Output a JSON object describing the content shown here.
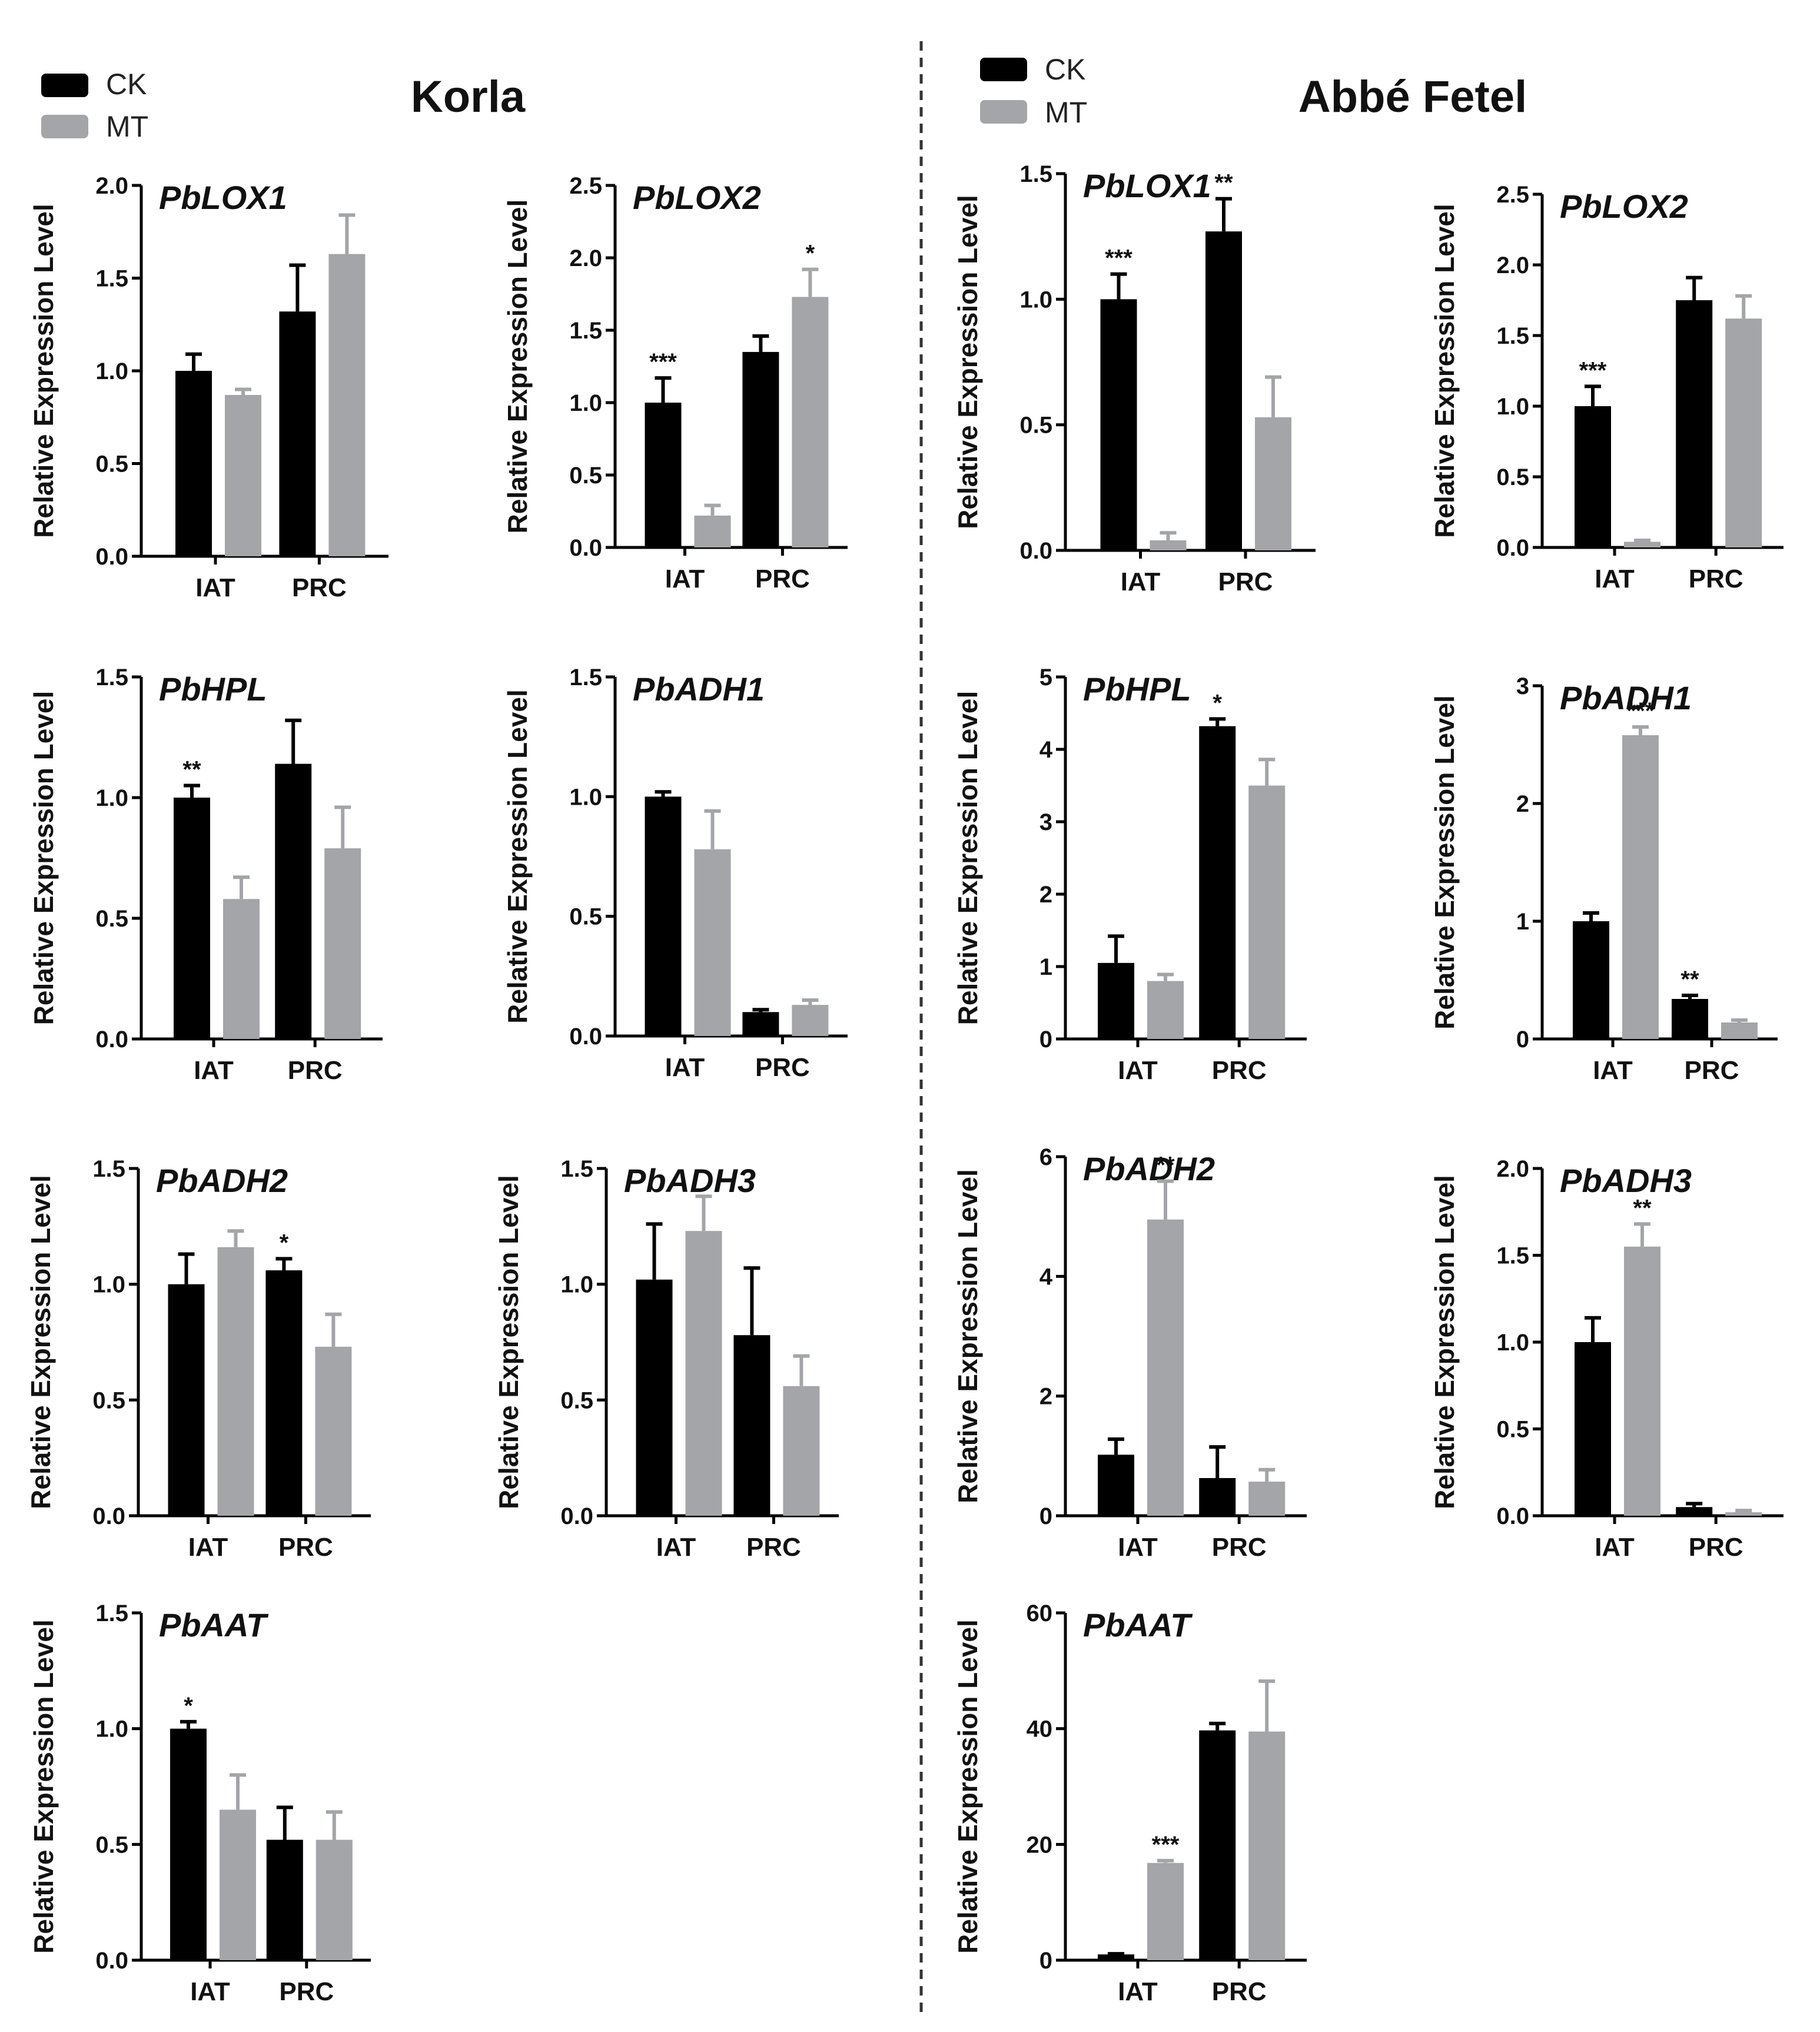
{
  "colors": {
    "ck": "#000000",
    "mt": "#a3a5a8",
    "axis": "#000000",
    "divider": "#333333"
  },
  "left_group": {
    "title": "Korla",
    "legend": [
      {
        "label": "CK",
        "color": "#000000"
      },
      {
        "label": "MT",
        "color": "#a3a5a8"
      }
    ]
  },
  "right_group": {
    "title": "Abbé Fetel",
    "legend": [
      {
        "label": "CK",
        "color": "#000000"
      },
      {
        "label": "MT",
        "color": "#a3a5a8"
      }
    ]
  },
  "chart_data": [
    {
      "id": "korla-pblox1",
      "group": "Korla",
      "type": "bar",
      "title": "PbLOX1",
      "ylabel": "Relative Expression Level",
      "categories": [
        "IAT",
        "PRC"
      ],
      "ylim": [
        0,
        2.0
      ],
      "yticks": [
        "0.0",
        "0.5",
        "1.0",
        "1.5",
        "2.0"
      ],
      "series": [
        {
          "name": "CK",
          "values": [
            1.0,
            1.32
          ],
          "errors": [
            0.09,
            0.25
          ]
        },
        {
          "name": "MT",
          "values": [
            0.87,
            1.63
          ],
          "errors": [
            0.03,
            0.21
          ]
        }
      ],
      "significance": [
        {
          "category": "IAT",
          "series": "CK",
          "label": ""
        }
      ]
    },
    {
      "id": "korla-pblox2",
      "group": "Korla",
      "type": "bar",
      "title": "PbLOX2",
      "ylabel": "Relative Expression Level",
      "categories": [
        "IAT",
        "PRC"
      ],
      "ylim": [
        0,
        2.5
      ],
      "yticks": [
        "0.0",
        "0.5",
        "1.0",
        "1.5",
        "2.0",
        "2.5"
      ],
      "series": [
        {
          "name": "CK",
          "values": [
            1.0,
            1.35
          ],
          "errors": [
            0.17,
            0.11
          ]
        },
        {
          "name": "MT",
          "values": [
            0.22,
            1.73
          ],
          "errors": [
            0.07,
            0.19
          ]
        }
      ],
      "significance": [
        {
          "category": "IAT",
          "series": "CK",
          "label": "***"
        },
        {
          "category": "PRC",
          "series": "MT",
          "label": "*"
        }
      ]
    },
    {
      "id": "korla-pbhpl",
      "group": "Korla",
      "type": "bar",
      "title": "PbHPL",
      "ylabel": "Relative Expression Level",
      "categories": [
        "IAT",
        "PRC"
      ],
      "ylim": [
        0,
        1.5
      ],
      "yticks": [
        "0.0",
        "0.5",
        "1.0",
        "1.5"
      ],
      "series": [
        {
          "name": "CK",
          "values": [
            1.0,
            1.14
          ],
          "errors": [
            0.05,
            0.18
          ]
        },
        {
          "name": "MT",
          "values": [
            0.58,
            0.79
          ],
          "errors": [
            0.09,
            0.17
          ]
        }
      ],
      "significance": [
        {
          "category": "IAT",
          "series": "CK",
          "label": "**"
        }
      ]
    },
    {
      "id": "korla-pbadh1",
      "group": "Korla",
      "type": "bar",
      "title": "PbADH1",
      "ylabel": "Relative Expression Level",
      "categories": [
        "IAT",
        "PRC"
      ],
      "ylim": [
        0,
        1.5
      ],
      "yticks": [
        "0.0",
        "0.5",
        "1.0",
        "1.5"
      ],
      "series": [
        {
          "name": "CK",
          "values": [
            1.0,
            0.1
          ],
          "errors": [
            0.02,
            0.01
          ]
        },
        {
          "name": "MT",
          "values": [
            0.78,
            0.13
          ],
          "errors": [
            0.16,
            0.02
          ]
        }
      ],
      "significance": []
    },
    {
      "id": "korla-pbadh2",
      "group": "Korla",
      "type": "bar",
      "title": "PbADH2",
      "ylabel": "Relative Expression Level",
      "categories": [
        "IAT",
        "PRC"
      ],
      "ylim": [
        0,
        1.5
      ],
      "yticks": [
        "0.0",
        "0.5",
        "1.0",
        "1.5"
      ],
      "series": [
        {
          "name": "CK",
          "values": [
            1.0,
            1.06
          ],
          "errors": [
            0.13,
            0.05
          ]
        },
        {
          "name": "MT",
          "values": [
            1.16,
            0.73
          ],
          "errors": [
            0.07,
            0.14
          ]
        }
      ],
      "significance": [
        {
          "category": "PRC",
          "series": "CK",
          "label": "*"
        }
      ]
    },
    {
      "id": "korla-pbadh3",
      "group": "Korla",
      "type": "bar",
      "title": "PbADH3",
      "ylabel": "Relative Expression Level",
      "categories": [
        "IAT",
        "PRC"
      ],
      "ylim": [
        0,
        1.5
      ],
      "yticks": [
        "0.0",
        "0.5",
        "1.0",
        "1.5"
      ],
      "series": [
        {
          "name": "CK",
          "values": [
            1.02,
            0.78
          ],
          "errors": [
            0.24,
            0.29
          ]
        },
        {
          "name": "MT",
          "values": [
            1.23,
            0.56
          ],
          "errors": [
            0.15,
            0.13
          ]
        }
      ],
      "significance": []
    },
    {
      "id": "korla-pbaat",
      "group": "Korla",
      "type": "bar",
      "title": "PbAAT",
      "ylabel": "Relative Expression Level",
      "categories": [
        "IAT",
        "PRC"
      ],
      "ylim": [
        0,
        1.5
      ],
      "yticks": [
        "0.0",
        "0.5",
        "1.0",
        "1.5"
      ],
      "series": [
        {
          "name": "CK",
          "values": [
            1.0,
            0.52
          ],
          "errors": [
            0.03,
            0.14
          ]
        },
        {
          "name": "MT",
          "values": [
            0.65,
            0.52
          ],
          "errors": [
            0.15,
            0.12
          ]
        }
      ],
      "significance": [
        {
          "category": "IAT",
          "series": "CK",
          "label": "*"
        }
      ]
    },
    {
      "id": "abbe-pblox1",
      "group": "Abbé Fetel",
      "type": "bar",
      "title": "PbLOX1",
      "ylabel": "Relative Expression Level",
      "categories": [
        "IAT",
        "PRC"
      ],
      "ylim": [
        0,
        1.5
      ],
      "yticks": [
        "0.0",
        "0.5",
        "1.0",
        "1.5"
      ],
      "series": [
        {
          "name": "CK",
          "values": [
            1.0,
            1.27
          ],
          "errors": [
            0.1,
            0.13
          ]
        },
        {
          "name": "MT",
          "values": [
            0.04,
            0.53
          ],
          "errors": [
            0.03,
            0.16
          ]
        }
      ],
      "significance": [
        {
          "category": "IAT",
          "series": "CK",
          "label": "***"
        },
        {
          "category": "PRC",
          "series": "CK",
          "label": "**"
        }
      ]
    },
    {
      "id": "abbe-pblox2",
      "group": "Abbé Fetel",
      "type": "bar",
      "title": "PbLOX2",
      "ylabel": "Relative Expression Level",
      "categories": [
        "IAT",
        "PRC"
      ],
      "ylim": [
        0,
        2.5
      ],
      "yticks": [
        "0.0",
        "0.5",
        "1.0",
        "1.5",
        "2.0",
        "2.5"
      ],
      "series": [
        {
          "name": "CK",
          "values": [
            1.0,
            1.75
          ],
          "errors": [
            0.14,
            0.16
          ]
        },
        {
          "name": "MT",
          "values": [
            0.04,
            1.62
          ],
          "errors": [
            0.01,
            0.16
          ]
        }
      ],
      "significance": [
        {
          "category": "IAT",
          "series": "CK",
          "label": "***"
        }
      ]
    },
    {
      "id": "abbe-pbhpl",
      "group": "Abbé Fetel",
      "type": "bar",
      "title": "PbHPL",
      "ylabel": "Relative Expression Level",
      "categories": [
        "IAT",
        "PRC"
      ],
      "ylim": [
        0,
        5
      ],
      "yticks": [
        "0",
        "1",
        "2",
        "3",
        "4",
        "5"
      ],
      "series": [
        {
          "name": "CK",
          "values": [
            1.05,
            4.32
          ],
          "errors": [
            0.37,
            0.1
          ]
        },
        {
          "name": "MT",
          "values": [
            0.8,
            3.5
          ],
          "errors": [
            0.09,
            0.36
          ]
        }
      ],
      "significance": [
        {
          "category": "PRC",
          "series": "CK",
          "label": "*"
        }
      ]
    },
    {
      "id": "abbe-pbadh1",
      "group": "Abbé Fetel",
      "type": "bar",
      "title": "PbADH1",
      "ylabel": "Relative Expression Level",
      "categories": [
        "IAT",
        "PRC"
      ],
      "ylim": [
        0,
        3
      ],
      "yticks": [
        "0",
        "1",
        "2",
        "3"
      ],
      "series": [
        {
          "name": "CK",
          "values": [
            1.0,
            0.34
          ],
          "errors": [
            0.07,
            0.03
          ]
        },
        {
          "name": "MT",
          "values": [
            2.58,
            0.14
          ],
          "errors": [
            0.07,
            0.02
          ]
        }
      ],
      "significance": [
        {
          "category": "IAT",
          "series": "MT",
          "label": "***"
        },
        {
          "category": "PRC",
          "series": "CK",
          "label": "**"
        }
      ]
    },
    {
      "id": "abbe-pbadh2",
      "group": "Abbé Fetel",
      "type": "bar",
      "title": "PbADH2",
      "ylabel": "Relative Expression Level",
      "categories": [
        "IAT",
        "PRC"
      ],
      "ylim": [
        0,
        6
      ],
      "yticks": [
        "0",
        "2",
        "4",
        "6"
      ],
      "series": [
        {
          "name": "CK",
          "values": [
            1.02,
            0.63
          ],
          "errors": [
            0.26,
            0.52
          ]
        },
        {
          "name": "MT",
          "values": [
            4.95,
            0.57
          ],
          "errors": [
            0.64,
            0.2
          ]
        }
      ],
      "significance": [
        {
          "category": "IAT",
          "series": "MT",
          "label": "**"
        }
      ]
    },
    {
      "id": "abbe-pbadh3",
      "group": "Abbé Fetel",
      "type": "bar",
      "title": "PbADH3",
      "ylabel": "Relative Expression Level",
      "categories": [
        "IAT",
        "PRC"
      ],
      "ylim": [
        0,
        2.0
      ],
      "yticks": [
        "0.0",
        "0.5",
        "1.0",
        "1.5",
        "2.0"
      ],
      "series": [
        {
          "name": "CK",
          "values": [
            1.0,
            0.05
          ],
          "errors": [
            0.14,
            0.02
          ]
        },
        {
          "name": "MT",
          "values": [
            1.55,
            0.02
          ],
          "errors": [
            0.13,
            0.01
          ]
        }
      ],
      "significance": [
        {
          "category": "IAT",
          "series": "MT",
          "label": "**"
        }
      ]
    },
    {
      "id": "abbe-pbaat",
      "group": "Abbé Fetel",
      "type": "bar",
      "title": "PbAAT",
      "ylabel": "Relative Expression Level",
      "categories": [
        "IAT",
        "PRC"
      ],
      "ylim": [
        0,
        60
      ],
      "yticks": [
        "0",
        "20",
        "40",
        "60"
      ],
      "series": [
        {
          "name": "CK",
          "values": [
            1.0,
            39.7
          ],
          "errors": [
            0.1,
            1.2
          ]
        },
        {
          "name": "MT",
          "values": [
            16.8,
            39.5
          ],
          "errors": [
            0.4,
            8.7
          ]
        }
      ],
      "significance": [
        {
          "category": "IAT",
          "series": "MT",
          "label": "***"
        }
      ]
    }
  ]
}
